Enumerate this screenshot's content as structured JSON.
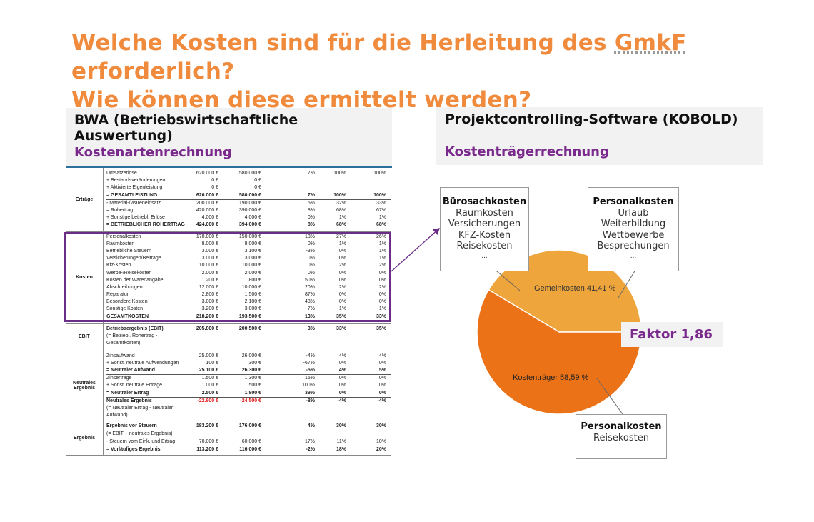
{
  "title": {
    "line1_pre": "Welche Kosten sind für die Herleitung des ",
    "line1_term": "GmkF",
    "line1_post": " erforderlich?",
    "line2": "Wie können diese ermittelt werden?"
  },
  "left_box": {
    "heading": "BWA (Betriebswirtschaftliche Auswertung)",
    "subheading": "Kostenartenrechnung"
  },
  "right_box": {
    "heading": "Projektcontrolling-Software (KOBOLD)",
    "subheading": "Kostenträgerrechnung"
  },
  "bwa_sections": [
    {
      "label": "Erträge",
      "rows": [
        {
          "name": "Umsatzerlöse",
          "a": "620.000 €",
          "b": "580.000 €",
          "c": "7%",
          "d": "100%",
          "e": "100%"
        },
        {
          "name": "+ Bestandsveränderungen",
          "a": "0 €",
          "b": "0 €",
          "c": "",
          "d": "",
          "e": ""
        },
        {
          "name": "+ Aktivierte Eigenleistung",
          "a": "0 €",
          "b": "0 €",
          "c": "",
          "d": "",
          "e": ""
        },
        {
          "name": "= GESAMTLEISTUNG",
          "a": "620.000 €",
          "b": "580.000 €",
          "c": "7%",
          "d": "100%",
          "e": "100%",
          "bold": true
        },
        {
          "name": "- Material-/Wareneinsatz",
          "a": "200.000 €",
          "b": "190.000 €",
          "c": "5%",
          "d": "32%",
          "e": "33%",
          "sum": true
        },
        {
          "name": "= Rohertrag",
          "a": "420.000 €",
          "b": "390.000 €",
          "c": "8%",
          "d": "68%",
          "e": "67%"
        },
        {
          "name": "+ Sonstige betriebl. Erlöse",
          "a": "4.000 €",
          "b": "4.000 €",
          "c": "0%",
          "d": "1%",
          "e": "1%"
        },
        {
          "name": "= BETRIEBLICHER ROHERTRAG",
          "a": "424.000 €",
          "b": "394.000 €",
          "c": "8%",
          "d": "68%",
          "e": "68%",
          "bold": true
        }
      ]
    },
    {
      "label": "Kosten",
      "rows": [
        {
          "name": "Personalkosten",
          "a": "170.000 €",
          "b": "150.000 €",
          "c": "13%",
          "d": "27%",
          "e": "26%"
        },
        {
          "name": "Raumkosten",
          "a": "8.000 €",
          "b": "8.000 €",
          "c": "0%",
          "d": "1%",
          "e": "1%"
        },
        {
          "name": "Betriebliche Steuern",
          "a": "3.000 €",
          "b": "3.100 €",
          "c": "-3%",
          "d": "0%",
          "e": "1%"
        },
        {
          "name": "Versicherungen/Beiträge",
          "a": "3.000 €",
          "b": "3.000 €",
          "c": "0%",
          "d": "0%",
          "e": "1%"
        },
        {
          "name": "Kfz-Kosten",
          "a": "10.000 €",
          "b": "10.000 €",
          "c": "0%",
          "d": "2%",
          "e": "2%"
        },
        {
          "name": "Werbe-/Reisekosten",
          "a": "2.000 €",
          "b": "2.000 €",
          "c": "0%",
          "d": "0%",
          "e": "0%"
        },
        {
          "name": "Kosten der Warenangabe",
          "a": "1.200 €",
          "b": "800 €",
          "c": "50%",
          "d": "0%",
          "e": "0%"
        },
        {
          "name": "Abschreibungen",
          "a": "12.000 €",
          "b": "10.000 €",
          "c": "20%",
          "d": "2%",
          "e": "2%"
        },
        {
          "name": "Reparatur",
          "a": "2.800 €",
          "b": "1.500 €",
          "c": "87%",
          "d": "0%",
          "e": "0%"
        },
        {
          "name": "Besondere Kosten",
          "a": "3.000 €",
          "b": "2.100 €",
          "c": "43%",
          "d": "0%",
          "e": "0%"
        },
        {
          "name": "Sonstige Kosten",
          "a": "3.200 €",
          "b": "3.000 €",
          "c": "7%",
          "d": "1%",
          "e": "1%"
        },
        {
          "name": "GESAMTKOSTEN",
          "a": "218.200 €",
          "b": "193.500 €",
          "c": "13%",
          "d": "35%",
          "e": "33%",
          "bold": true
        }
      ]
    },
    {
      "label": "EBIT",
      "rows": [
        {
          "name": "Betriebsergebnis (EBIT)",
          "a": "205.800 €",
          "b": "200.500 €",
          "c": "3%",
          "d": "33%",
          "e": "35%",
          "bold": true
        },
        {
          "name": "(= Betriebl. Rohertrag -",
          "a": "",
          "b": "",
          "c": "",
          "d": "",
          "e": ""
        },
        {
          "name": "Gesamtkosten)",
          "a": "",
          "b": "",
          "c": "",
          "d": "",
          "e": ""
        }
      ]
    },
    {
      "label": "Neutrales Ergebnis",
      "rows": [
        {
          "name": "Zinsaufwand",
          "a": "25.000 €",
          "b": "26.000 €",
          "c": "-4%",
          "d": "4%",
          "e": "4%"
        },
        {
          "name": "+ Sonst. neutrale Aufwendungen",
          "a": "100 €",
          "b": "300 €",
          "c": "-67%",
          "d": "0%",
          "e": "0%"
        },
        {
          "name": "= Neutraler Aufwand",
          "a": "25.100 €",
          "b": "26.300 €",
          "c": "-5%",
          "d": "4%",
          "e": "5%",
          "bold": true
        },
        {
          "name": "Zinserträge",
          "a": "1.500 €",
          "b": "1.300 €",
          "c": "15%",
          "d": "0%",
          "e": "0%",
          "sum": true
        },
        {
          "name": "+ Sonst. neutrale Erträge",
          "a": "1.000 €",
          "b": "500 €",
          "c": "100%",
          "d": "0%",
          "e": "0%"
        },
        {
          "name": "= Neutraler Ertrag",
          "a": "2.500 €",
          "b": "1.800 €",
          "c": "39%",
          "d": "0%",
          "e": "0%",
          "bold": true
        },
        {
          "name": "Neutrales Ergebnis",
          "a": "-22.600 €",
          "b": "-24.500 €",
          "c": "-8%",
          "d": "-4%",
          "e": "-4%",
          "bold": true,
          "neg": true,
          "sum": true
        },
        {
          "name": "(= Neutraler Ertrag - Neutraler",
          "a": "",
          "b": "",
          "c": "",
          "d": "",
          "e": ""
        },
        {
          "name": "Aufwand)",
          "a": "",
          "b": "",
          "c": "",
          "d": "",
          "e": ""
        }
      ]
    },
    {
      "label": "Ergebnis",
      "rows": [
        {
          "name": "Ergebnis vor Steuern",
          "a": "183.200 €",
          "b": "176.000 €",
          "c": "4%",
          "d": "30%",
          "e": "30%",
          "bold": true
        },
        {
          "name": "(= EBIT + neutrales Ergebnis)",
          "a": "",
          "b": "",
          "c": "",
          "d": "",
          "e": ""
        },
        {
          "name": "- Steuern vom Eink. und Ertrag",
          "a": "70.000 €",
          "b": "60.000 €",
          "c": "17%",
          "d": "11%",
          "e": "10%",
          "sum": true
        },
        {
          "name": "= Vorläufiges Ergebnis",
          "a": "113.200 €",
          "b": "116.000 €",
          "c": "-2%",
          "d": "18%",
          "e": "20%",
          "bold": true,
          "sum": true
        }
      ]
    }
  ],
  "chart_data": {
    "type": "pie",
    "slices": [
      {
        "label": "Gemeinkosten 41,41 %",
        "value": 41.41,
        "color": "#eea53c"
      },
      {
        "label": "Kostenträger 58,59 %",
        "value": 58.59,
        "color": "#ec7218"
      }
    ]
  },
  "callouts": {
    "buero": {
      "title": "Bürosachkosten",
      "items": [
        "Raumkosten",
        "Versicherungen",
        "KFZ-Kosten",
        "Reisekosten",
        "..."
      ]
    },
    "personal_top": {
      "title": "Personalkosten",
      "items": [
        "Urlaub",
        "Weiterbildung",
        "Wettbewerbe",
        "Besprechungen",
        "..."
      ]
    },
    "personal_bottom": {
      "title": "Personalkosten",
      "items": [
        "Reisekosten"
      ]
    }
  },
  "faktor": "Faktor 1,86"
}
